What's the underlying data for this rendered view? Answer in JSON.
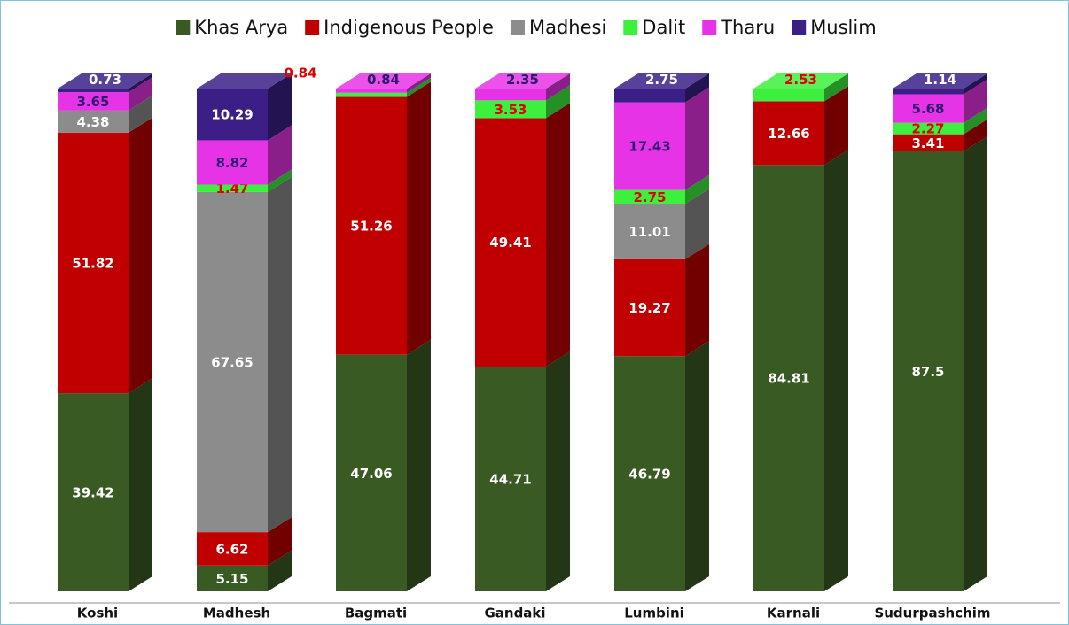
{
  "chart_data": {
    "type": "bar",
    "stacked": true,
    "categories": [
      "Koshi",
      "Madhesh",
      "Bagmati",
      "Gandaki",
      "Lumbini",
      "Karnali",
      "Sudurpashchim"
    ],
    "series": [
      {
        "name": "Khas Arya",
        "color": "#3a5a24",
        "label_color": "#ffffff",
        "values": [
          39.42,
          5.15,
          47.06,
          44.71,
          46.79,
          84.81,
          87.5
        ]
      },
      {
        "name": "Indigenous People",
        "color": "#c00000",
        "label_color": "#ffffff",
        "values": [
          51.82,
          6.62,
          51.26,
          49.41,
          19.27,
          12.66,
          3.41
        ]
      },
      {
        "name": "Madhesi",
        "color": "#8c8c8c",
        "label_color": "#ffffff",
        "values": [
          4.38,
          67.65,
          null,
          null,
          11.01,
          null,
          null
        ]
      },
      {
        "name": "Dalit",
        "color": "#3df03d",
        "label_color": "#e00000",
        "values": [
          null,
          1.47,
          0.84,
          3.53,
          2.75,
          2.53,
          2.27
        ]
      },
      {
        "name": "Tharu",
        "color": "#e633e6",
        "label_color": "#2a1a70",
        "values": [
          3.65,
          8.82,
          0.84,
          2.35,
          17.43,
          null,
          5.68
        ]
      },
      {
        "name": "Muslim",
        "color": "#3b1f87",
        "label_color": "#ffffff",
        "values": [
          0.73,
          10.29,
          null,
          null,
          2.75,
          null,
          1.14
        ]
      }
    ],
    "ylim": [
      0,
      100
    ],
    "legend": "top"
  }
}
